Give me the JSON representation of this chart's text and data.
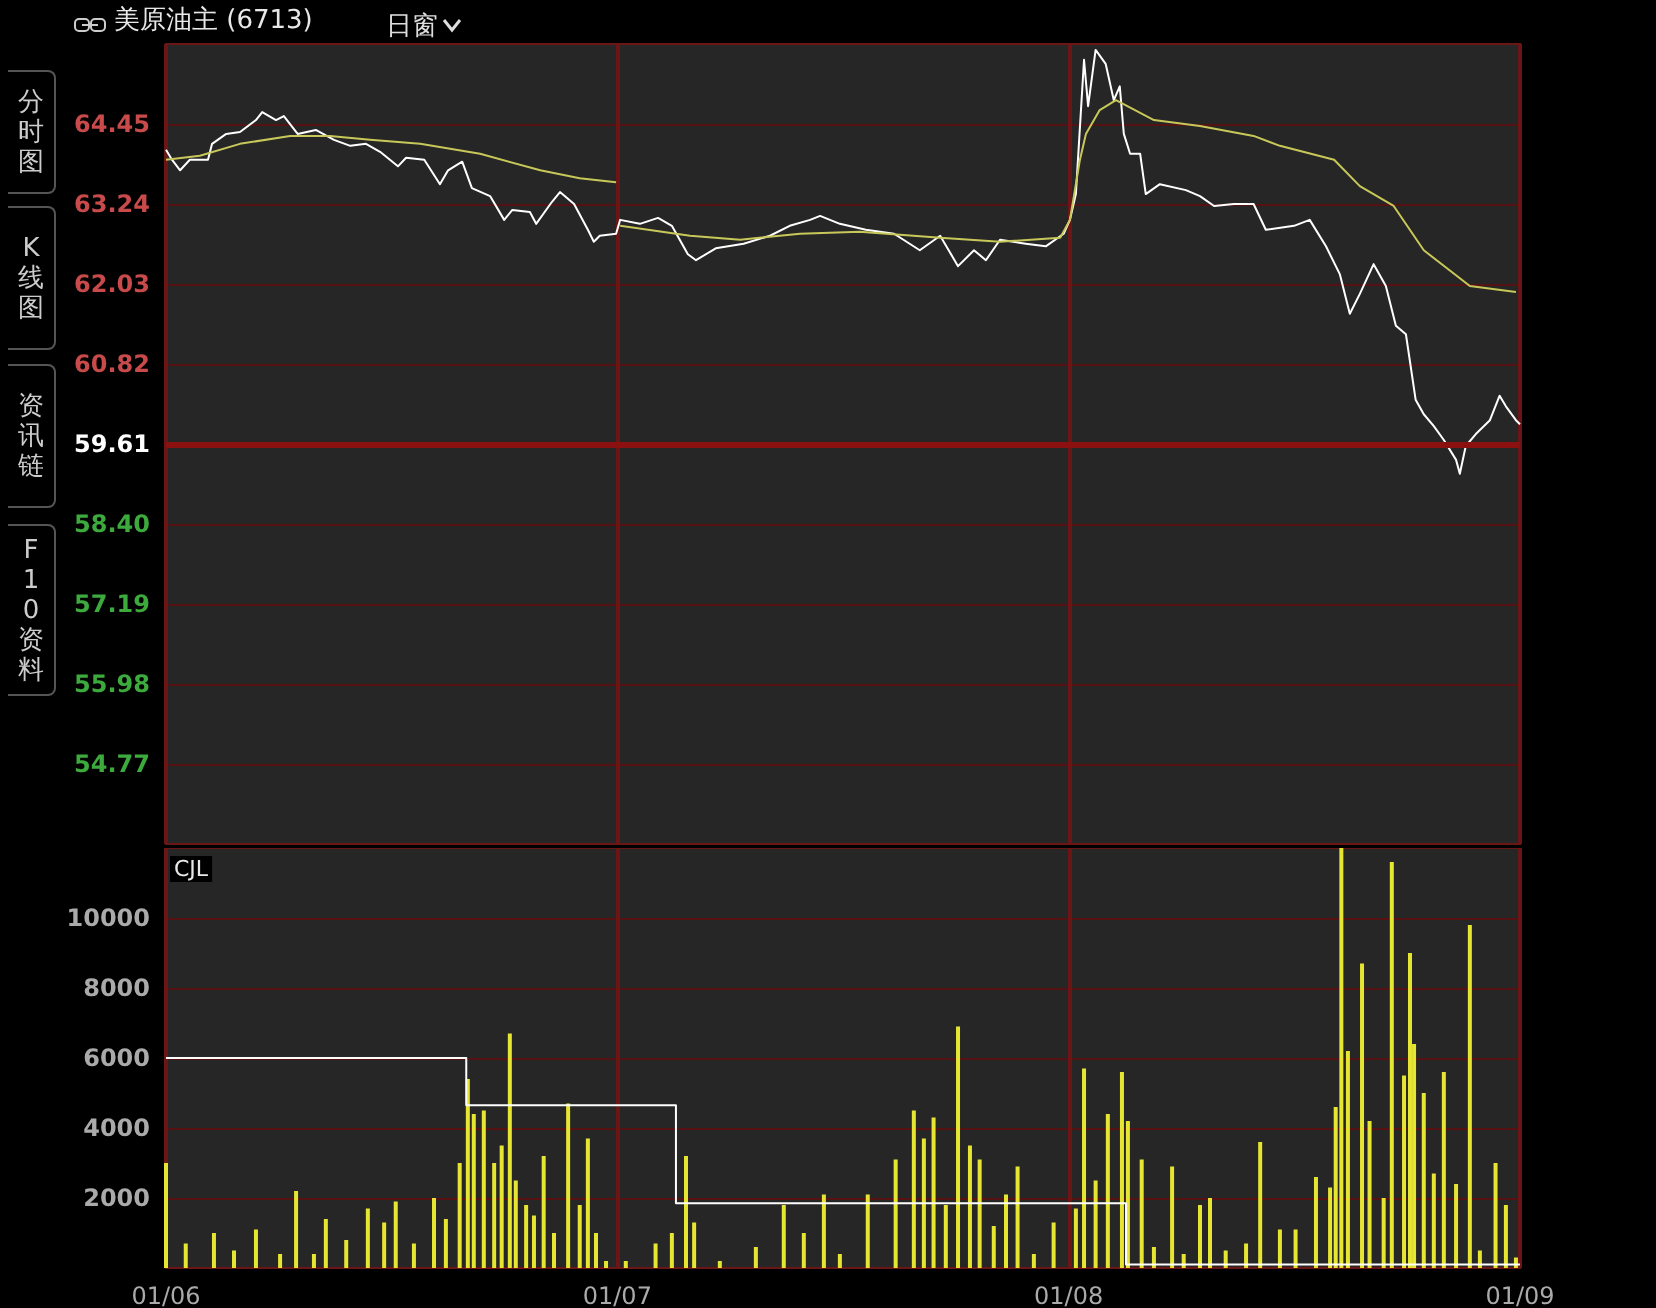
{
  "chart_data": [
    {
      "type": "line",
      "title": "美原油主 (6713)",
      "annotations": [
        "日窗",
        "分时图",
        "K线图",
        "资讯链",
        "F10资料"
      ],
      "xlim": [
        "--01-06",
        "--01-09"
      ],
      "xticks": [
        {
          "value": "--01-06",
          "label": "01/06"
        },
        {
          "value": "--01-07",
          "label": "01/07"
        },
        {
          "value": "--01-08",
          "label": "01/08"
        },
        {
          "value": "--01-09",
          "label": "01/09"
        }
      ],
      "ylim": [
        53.56,
        65.66
      ],
      "yticks": [
        54.77,
        55.98,
        57.19,
        {
          "value": 58.4,
          "label": "58.40"
        },
        59.61,
        60.82,
        62.03,
        63.24,
        64.45
      ],
      "tick_labels": "y",
      "grid": true,
      "ref_lines": [
        {
          "axis": "y",
          "value": 59.61,
          "color": "#8b1010"
        }
      ],
      "series": [
        {
          "color": "#ffffff",
          "x": [
            "--01-06T00:00",
            "--01-06T00:19",
            "--01-06T00:45",
            "--01-06T01:16",
            "--01-06T02:14",
            "--01-06T02:27",
            "--01-06T03:12",
            "--01-06T03:56",
            "--01-06T04:47",
            "--01-06T05:07",
            "--01-06T05:51",
            "--01-06T06:16",
            "--01-06T07:00",
            "--01-06T07:58",
            "--01-06T08:56",
            "--01-06T09:48",
            "--01-06T10:38",
            "--01-06T11:23",
            "--01-06T12:20",
            "--01-06T12:46",
            "--01-06T13:44",
            "--01-06T14:34",
            "--01-06T15:00",
            "--01-06T15:45",
            "--01-06T16:16",
            "--01-06T17:14",
            "--01-06T17:59",
            "--01-06T18:25",
            "--01-06T19:21",
            "--01-06T19:41",
            "--01-06T20:31",
            "--01-06T20:57",
            "--01-06T21:42",
            "--01-06T22:26",
            "--01-06T22:45",
            "--01-06T23:04",
            "--01-06T23:56",
            "--01-07T00:09",
            "--01-07T01:12",
            "--01-07T02:10",
            "--01-07T02:54",
            "--01-07T03:45",
            "--01-07T04:11",
            "--01-07T05:14",
            "--01-07T06:43",
            "--01-07T08:07",
            "--01-07T09:10",
            "--01-07T10:15",
            "--01-07T10:47",
            "--01-07T11:50",
            "--01-07T13:13",
            "--01-07T14:43",
            "--01-07T16:05",
            "--01-07T17:10",
            "--01-07T18:07",
            "--01-07T18:58",
            "--01-07T19:36",
            "--01-07T20:21",
            "--01-07T21:43",
            "--01-07T22:47",
            "--01-07T23:44",
            "--01-08T00:04",
            "--01-08T00:23",
            "--01-08T00:49",
            "--01-08T01:02",
            "--01-08T01:26",
            "--01-08T01:58",
            "--01-08T02:24",
            "--01-08T02:43",
            "--01-08T02:56",
            "--01-08T03:16",
            "--01-08T03:48",
            "--01-08T04:06",
            "--01-08T04:51",
            "--01-08T06:14",
            "--01-08T06:59",
            "--01-08T07:44",
            "--01-08T08:47",
            "--01-08T09:50",
            "--01-08T10:29",
            "--01-08T11:59",
            "--01-08T12:49",
            "--01-08T13:41",
            "--01-08T14:25",
            "--01-08T14:57",
            "--01-08T15:29",
            "--01-08T16:13",
            "--01-08T16:52",
            "--01-08T17:24",
            "--01-08T17:56",
            "--01-08T18:27",
            "--01-08T18:53",
            "--01-08T19:25",
            "--01-08T19:57",
            "--01-08T20:36",
            "--01-08T20:48",
            "--01-08T21:07",
            "--01-08T21:39",
            "--01-08T22:24",
            "--01-08T22:55",
            "--01-08T23:15",
            "--01-08T23:47",
            "--01-09T00:00"
          ],
          "values": [
            64.06,
            63.91,
            63.75,
            63.91,
            63.91,
            64.15,
            64.3,
            64.33,
            64.51,
            64.63,
            64.51,
            64.57,
            64.3,
            64.36,
            64.21,
            64.12,
            64.15,
            64.03,
            63.81,
            63.94,
            63.91,
            63.54,
            63.75,
            63.88,
            63.48,
            63.36,
            63.0,
            63.15,
            63.12,
            62.94,
            63.27,
            63.42,
            63.24,
            62.85,
            62.67,
            62.76,
            62.79,
            63.0,
            62.94,
            63.03,
            62.91,
            62.48,
            62.39,
            62.57,
            62.64,
            62.76,
            62.91,
            63.0,
            63.06,
            62.94,
            62.85,
            62.79,
            62.54,
            62.76,
            62.3,
            62.54,
            62.39,
            62.7,
            62.64,
            62.6,
            62.79,
            63.0,
            63.39,
            65.42,
            64.72,
            65.57,
            65.36,
            64.81,
            65.02,
            64.3,
            64.0,
            64.0,
            63.39,
            63.54,
            63.45,
            63.36,
            63.21,
            63.24,
            63.24,
            62.85,
            62.91,
            63.0,
            62.6,
            62.18,
            61.58,
            61.88,
            62.33,
            62.0,
            61.4,
            61.27,
            60.28,
            60.06,
            59.88,
            59.67,
            59.37,
            59.16,
            59.58,
            59.76,
            59.97,
            60.34,
            60.18,
            59.97,
            59.91
          ]
        },
        {
          "color": "#c8c85a",
          "x": [
            "--01-06T00:00",
            "--01-06T01:48",
            "--01-06T03:56",
            "--01-06T06:36",
            "--01-06T08:43",
            "--01-06T10:51",
            "--01-06T13:31",
            "--01-06T16:42",
            "--01-06T19:54",
            "--01-06T22:00",
            "--01-06T23:56",
            "--01-07T00:00",
            "--01-07T00:09",
            "--01-07T03:52",
            "--01-07T06:32",
            "--01-07T09:43",
            "--01-07T12:53",
            "--01-07T17:10",
            "--01-07T20:21",
            "--01-07T23:33",
            "--01-08T00:04",
            "--01-08T00:36",
            "--01-08T00:55",
            "--01-08T01:39",
            "--01-08T02:31",
            "--01-08T04:32",
            "--01-08T06:59",
            "--01-08T09:50",
            "--01-08T11:14",
            "--01-08T14:07",
            "--01-08T15:29",
            "--01-08T17:17",
            "--01-08T18:53",
            "--01-08T21:20",
            "--01-08T23:47"
          ],
          "values": [
            63.91,
            63.97,
            64.15,
            64.27,
            64.27,
            64.21,
            64.15,
            64.0,
            63.75,
            63.63,
            63.57,
            null,
            62.91,
            62.76,
            62.7,
            62.79,
            62.82,
            62.73,
            62.67,
            62.73,
            63.0,
            63.91,
            64.3,
            64.66,
            64.81,
            64.51,
            64.42,
            64.27,
            64.12,
            63.91,
            63.51,
            63.21,
            62.54,
            62.0,
            61.91
          ]
        }
      ]
    },
    {
      "type": "bar",
      "title": "CJL",
      "xlim": [
        "--01-06",
        "--01-09"
      ],
      "xticks": [
        {
          "value": "--01-06",
          "label": "01/06"
        },
        {
          "value": "--01-07",
          "label": "01/07"
        },
        {
          "value": "--01-08",
          "label": "01/08"
        },
        {
          "value": "--01-09",
          "label": "01/09"
        }
      ],
      "ylim": [
        0,
        12000
      ],
      "yticks": [
        2000,
        4000,
        6000,
        8000,
        10000
      ],
      "grid": true,
      "series": [
        {
          "color": "#e6e632",
          "x": [
            "--01-06T00:00",
            "--01-06T01:03",
            "--01-06T02:33",
            "--01-06T03:37",
            "--01-06T04:47",
            "--01-06T06:04",
            "--01-06T06:55",
            "--01-06T07:52",
            "--01-06T08:30",
            "--01-06T09:35",
            "--01-06T10:44",
            "--01-06T11:36",
            "--01-06T12:13",
            "--01-06T13:11",
            "--01-06T14:15",
            "--01-06T14:53",
            "--01-06T15:37",
            "--01-06T16:03",
            "--01-06T16:22",
            "--01-06T16:54",
            "--01-06T17:27",
            "--01-06T17:51",
            "--01-06T18:17",
            "--01-06T18:36",
            "--01-06T19:09",
            "--01-06T19:34",
            "--01-06T20:05",
            "--01-06T20:38",
            "--01-06T21:23",
            "--01-06T22:00",
            "--01-06T22:26",
            "--01-06T22:52",
            "--01-06T23:24",
            "--01-07T00:27",
            "--01-07T02:02",
            "--01-07T02:54",
            "--01-07T03:39",
            "--01-07T04:05",
            "--01-07T05:27",
            "--01-07T07:22",
            "--01-07T08:51",
            "--01-07T09:55",
            "--01-07T10:59",
            "--01-07T11:50",
            "--01-07T13:19",
            "--01-07T14:48",
            "--01-07T15:46",
            "--01-07T16:18",
            "--01-07T16:49",
            "--01-07T17:28",
            "--01-07T18:07",
            "--01-07T18:45",
            "--01-07T19:16",
            "--01-07T20:01",
            "--01-07T20:40",
            "--01-07T21:17",
            "--01-07T22:09",
            "--01-07T23:12",
            "--01-08T00:23",
            "--01-08T00:49",
            "--01-08T01:26",
            "--01-08T02:05",
            "--01-08T02:50",
            "--01-08T03:09",
            "--01-08T03:53",
            "--01-08T04:32",
            "--01-08T05:30",
            "--01-08T06:07",
            "--01-08T06:59",
            "--01-08T07:31",
            "--01-08T08:21",
            "--01-08T09:26",
            "--01-08T10:11",
            "--01-08T11:14",
            "--01-08T12:04",
            "--01-08T13:09",
            "--01-08T13:54",
            "--01-08T14:12",
            "--01-08T14:30",
            "--01-08T14:51",
            "--01-08T15:36",
            "--01-08T16:00",
            "--01-08T16:45",
            "--01-08T17:11",
            "--01-08T17:50",
            "--01-08T18:09",
            "--01-08T18:22",
            "--01-08T18:53",
            "--01-08T19:25",
            "--01-08T19:57",
            "--01-08T20:36",
            "--01-08T21:20",
            "--01-08T21:52",
            "--01-08T22:42",
            "--01-08T23:15",
            "--01-08T23:47"
          ],
          "values": [
            3000,
            700,
            1000,
            500,
            1100,
            400,
            2200,
            400,
            1400,
            800,
            1700,
            1300,
            1900,
            700,
            2000,
            1400,
            3000,
            5400,
            4400,
            4500,
            3000,
            3500,
            6700,
            2500,
            1800,
            1500,
            3200,
            1000,
            4700,
            1800,
            3700,
            1000,
            200,
            200,
            700,
            1000,
            3200,
            1300,
            200,
            600,
            1800,
            1000,
            2100,
            400,
            2100,
            3100,
            4500,
            3700,
            4300,
            1800,
            6900,
            3500,
            3100,
            1200,
            2100,
            2900,
            400,
            1300,
            1700,
            5700,
            2500,
            4400,
            5600,
            4200,
            3100,
            600,
            2900,
            400,
            1800,
            2000,
            500,
            700,
            3600,
            1100,
            1100,
            2600,
            2300,
            4600,
            12000,
            6200,
            8700,
            4200,
            2000,
            11600,
            5500,
            9000,
            6400,
            5000,
            2700,
            5600,
            2400,
            9800,
            500,
            3000,
            1800,
            300
          ]
        },
        {
          "type": "step",
          "color": "#ffffff",
          "x": [
            "--01-06T00:00",
            "--01-06T15:58",
            "--01-07T03:07",
            "--01-08T03:03",
            "--01-09T00:00"
          ],
          "values": [
            6000,
            4650,
            1850,
            100,
            100
          ]
        }
      ]
    }
  ]
}
